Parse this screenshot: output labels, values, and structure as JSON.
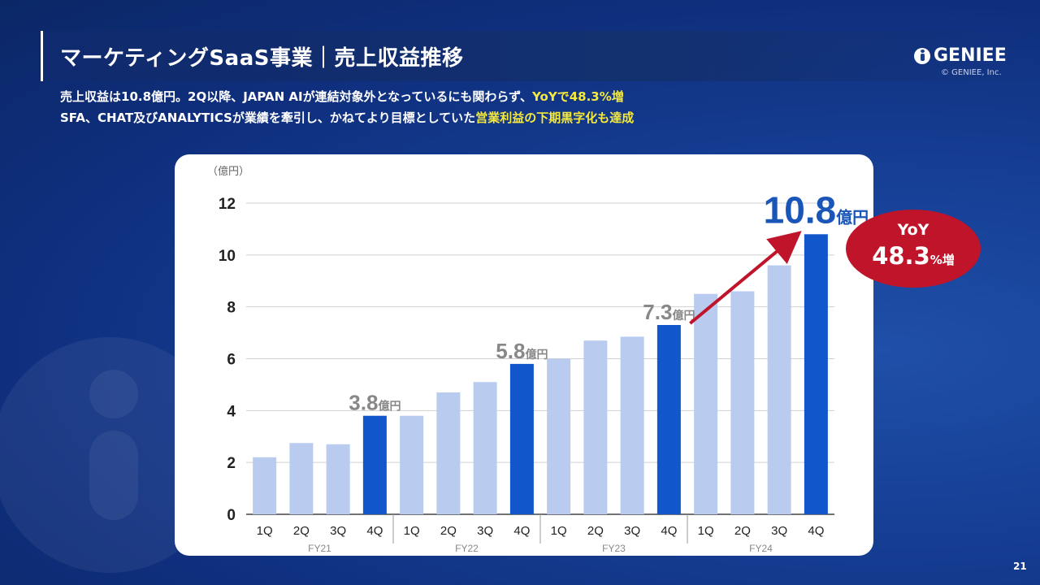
{
  "header": {
    "title": "マーケティングSaaS事業｜売上収益推移",
    "logo_text": "GENIEE",
    "copyright": "© GENIEE, Inc.",
    "subtitle_line1_pre": "売上収益は10.8億円。2Q以降、JAPAN AIが連結対象外となっているにも関わらず、",
    "subtitle_line1_hl": "YoYで48.3%増",
    "subtitle_line2_pre": "SFA、CHAT及びANALYTICSが業績を牽引し、かねてより目標としていた",
    "subtitle_line2_hl": "営業利益の下期黒字化も達成",
    "highlight_color": "#f5e93a"
  },
  "page_number": "21",
  "badge": {
    "label": "YoY",
    "value": "48.3",
    "unit": "%増",
    "color": "#c0142a"
  },
  "chart_data": {
    "type": "bar",
    "unit_label": "（億円）",
    "ylim": [
      0,
      12
    ],
    "yticks": [
      "0",
      "2",
      "4",
      "6",
      "8",
      "10",
      "12"
    ],
    "grid": true,
    "groups": [
      {
        "name": "FY21",
        "quarters": [
          "1Q",
          "2Q",
          "3Q",
          "4Q"
        ],
        "values": [
          2.2,
          2.75,
          2.7,
          3.8
        ]
      },
      {
        "name": "FY22",
        "quarters": [
          "1Q",
          "2Q",
          "3Q",
          "4Q"
        ],
        "values": [
          3.8,
          4.7,
          5.1,
          5.8
        ]
      },
      {
        "name": "FY23",
        "quarters": [
          "1Q",
          "2Q",
          "3Q",
          "4Q"
        ],
        "values": [
          6.0,
          6.7,
          6.85,
          7.3
        ]
      },
      {
        "name": "FY24",
        "quarters": [
          "1Q",
          "2Q",
          "3Q",
          "4Q"
        ],
        "values": [
          8.5,
          8.6,
          9.6,
          10.8
        ]
      }
    ],
    "annotations": [
      {
        "group": 0,
        "number": "3.8",
        "unit": "億円"
      },
      {
        "group": 1,
        "number": "5.8",
        "unit": "億円"
      },
      {
        "group": 2,
        "number": "7.3",
        "unit": "億円"
      },
      {
        "group": 3,
        "number": "10.8",
        "unit": "億円"
      }
    ],
    "colors": {
      "light": "#b9ccf0",
      "highlight": "#1256cc",
      "arrow": "#c0142a",
      "annotation": "#888888",
      "annotation_latest": "#1a56b8"
    }
  }
}
